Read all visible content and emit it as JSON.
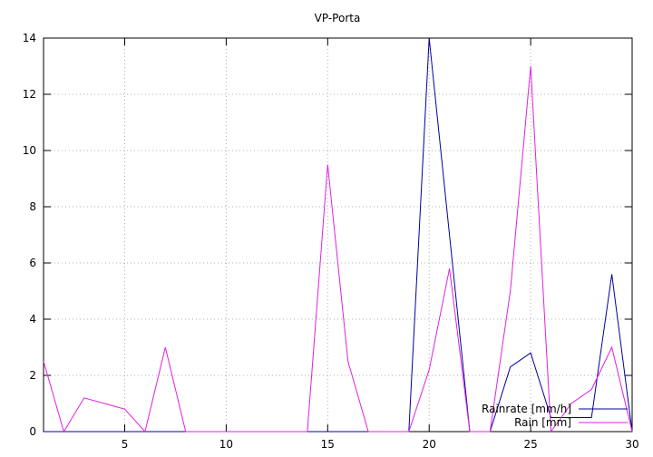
{
  "chart_data": {
    "type": "line",
    "title": "VP-Porta",
    "xlabel": "",
    "ylabel": "",
    "xlim": [
      1,
      30
    ],
    "ylim": [
      0,
      14
    ],
    "x_ticks": [
      5,
      10,
      15,
      20,
      25,
      30
    ],
    "y_ticks": [
      0,
      2,
      4,
      6,
      8,
      10,
      12,
      14
    ],
    "grid": true,
    "legend_position": "bottom-right",
    "x": [
      1,
      2,
      3,
      4,
      5,
      6,
      7,
      8,
      9,
      10,
      11,
      12,
      13,
      14,
      15,
      16,
      17,
      18,
      19,
      20,
      21,
      22,
      23,
      24,
      25,
      26,
      27,
      28,
      29,
      30
    ],
    "series": [
      {
        "name": "Rainrate [mm/h]",
        "color": "#0000a0",
        "values": [
          0,
          0,
          0,
          0,
          0,
          0,
          0,
          0,
          0,
          0,
          0,
          0,
          0,
          0,
          0,
          0,
          0,
          0,
          0,
          14,
          7,
          0,
          0,
          2.3,
          2.8,
          0.5,
          0.5,
          0.5,
          5.6,
          0
        ]
      },
      {
        "name": "Rain [mm]",
        "color": "#e020e0",
        "values": [
          2.5,
          0,
          1.2,
          1.0,
          0.8,
          0,
          3.0,
          0,
          0,
          0,
          0,
          0,
          0,
          0,
          9.5,
          2.5,
          0,
          0,
          0,
          2.2,
          5.8,
          0,
          0,
          5.0,
          13.0,
          0,
          1.0,
          1.5,
          3.0,
          0
        ]
      }
    ]
  }
}
